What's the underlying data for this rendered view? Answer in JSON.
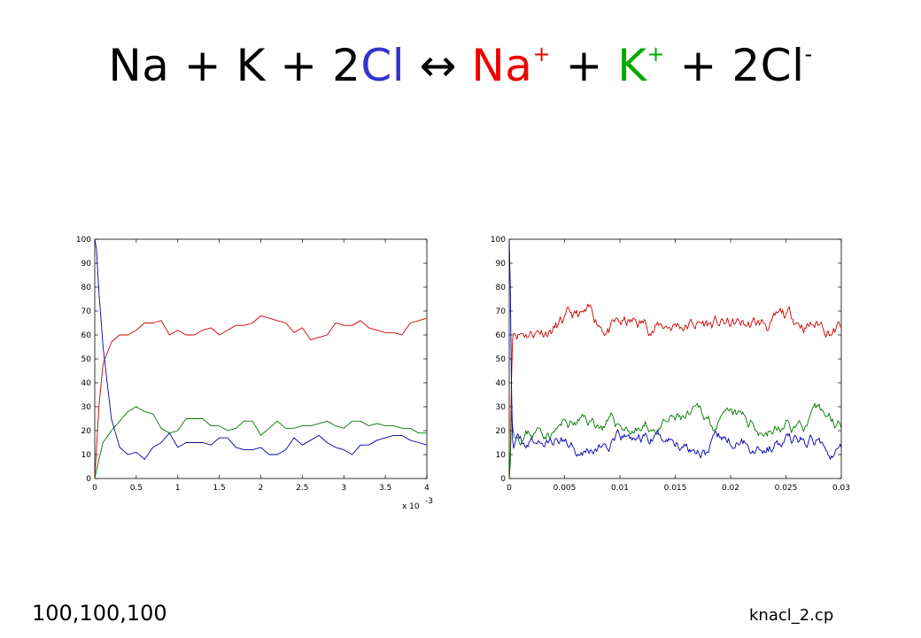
{
  "title": {
    "na": "Na",
    "k": "K",
    "cl2": "2",
    "cl": "Cl",
    "arrow": "↔",
    "na_ion": "Na",
    "k_ion": "K",
    "cl2_ion": "2Cl",
    "plus": "+",
    "minus": "-",
    "sep": " + "
  },
  "colors": {
    "cl": "#3333cc",
    "na": "#ee0000",
    "k": "#00aa00"
  },
  "footer": {
    "left": "100,100,100",
    "right": "knacl_2.cp"
  },
  "chart_data": [
    {
      "type": "line",
      "xlim": [
        0,
        4
      ],
      "ylim": [
        0,
        100
      ],
      "xticks": [
        "0",
        "0.5",
        "1",
        "1.5",
        "2",
        "2.5",
        "3",
        "3.5",
        "4"
      ],
      "yticks": [
        "0",
        "10",
        "20",
        "30",
        "40",
        "50",
        "60",
        "70",
        "80",
        "90",
        "100"
      ],
      "x_exponent_label": "x 10",
      "x_exponent": "-3",
      "grid": false,
      "series": [
        {
          "color": "#cc0000",
          "x": [
            0,
            0.05,
            0.1,
            0.2,
            0.3,
            0.4,
            0.5,
            0.6,
            0.7,
            0.8,
            0.9,
            1.0,
            1.1,
            1.2,
            1.3,
            1.4,
            1.5,
            1.6,
            1.7,
            1.8,
            1.9,
            2.0,
            2.1,
            2.2,
            2.3,
            2.4,
            2.5,
            2.6,
            2.7,
            2.8,
            2.9,
            3.0,
            3.1,
            3.2,
            3.3,
            3.4,
            3.5,
            3.6,
            3.7,
            3.8,
            3.9,
            4.0
          ],
          "y": [
            0,
            30,
            48,
            57,
            60,
            60,
            62,
            65,
            65,
            66,
            60,
            62,
            60,
            60,
            62,
            63,
            60,
            62,
            64,
            64,
            65,
            68,
            67,
            66,
            65,
            61,
            63,
            58,
            59,
            60,
            65,
            64,
            64,
            66,
            63,
            62,
            61,
            61,
            60,
            65,
            66,
            67
          ]
        },
        {
          "color": "#007700",
          "x": [
            0,
            0.05,
            0.1,
            0.2,
            0.3,
            0.4,
            0.5,
            0.6,
            0.7,
            0.8,
            0.9,
            1.0,
            1.1,
            1.2,
            1.3,
            1.4,
            1.5,
            1.6,
            1.7,
            1.8,
            1.9,
            2.0,
            2.1,
            2.2,
            2.3,
            2.4,
            2.5,
            2.6,
            2.7,
            2.8,
            2.9,
            3.0,
            3.1,
            3.2,
            3.3,
            3.4,
            3.5,
            3.6,
            3.7,
            3.8,
            3.9,
            4.0
          ],
          "y": [
            0,
            8,
            15,
            20,
            24,
            28,
            30,
            28,
            27,
            21,
            19,
            20,
            25,
            25,
            25,
            22,
            22,
            20,
            21,
            24,
            24,
            18,
            21,
            24,
            21,
            21,
            22,
            22,
            23,
            24,
            22,
            21,
            24,
            24,
            22,
            23,
            22,
            22,
            21,
            21,
            19,
            19
          ]
        },
        {
          "color": "#0000aa",
          "x": [
            0,
            0.02,
            0.05,
            0.1,
            0.2,
            0.3,
            0.4,
            0.5,
            0.6,
            0.7,
            0.8,
            0.9,
            1.0,
            1.1,
            1.2,
            1.3,
            1.4,
            1.5,
            1.6,
            1.7,
            1.8,
            1.9,
            2.0,
            2.1,
            2.2,
            2.3,
            2.4,
            2.5,
            2.6,
            2.7,
            2.8,
            2.9,
            3.0,
            3.1,
            3.2,
            3.3,
            3.4,
            3.5,
            3.6,
            3.7,
            3.8,
            3.9,
            4.0
          ],
          "y": [
            100,
            96,
            78,
            55,
            25,
            13,
            10,
            11,
            8,
            13,
            15,
            19,
            13,
            15,
            15,
            15,
            14,
            17,
            17,
            13,
            12,
            12,
            13,
            10,
            10,
            12,
            17,
            14,
            16,
            18,
            15,
            13,
            12,
            10,
            14,
            14,
            16,
            17,
            18,
            18,
            16,
            15,
            14
          ]
        }
      ]
    },
    {
      "type": "line",
      "xlim": [
        0,
        0.03
      ],
      "ylim": [
        0,
        100
      ],
      "xticks": [
        "0",
        "0.005",
        "0.01",
        "0.015",
        "0.02",
        "0.025",
        "0.03"
      ],
      "yticks": [
        "0",
        "10",
        "20",
        "30",
        "40",
        "50",
        "60",
        "70",
        "80",
        "90",
        "100"
      ],
      "grid": false,
      "series": [
        {
          "color": "#cc0000",
          "start": 0,
          "mean": 64,
          "amp": 3,
          "noise": 2.2,
          "seed": 11,
          "spike": [
            0,
            10,
            40,
            58
          ]
        },
        {
          "color": "#007700",
          "start": 0,
          "mean": 22,
          "amp": 3,
          "noise": 2.0,
          "seed": 23,
          "spike": [
            0,
            6,
            28,
            22
          ]
        },
        {
          "color": "#0000aa",
          "start": 100,
          "mean": 15,
          "amp": 2,
          "noise": 2.0,
          "seed": 37,
          "spike": [
            100,
            80,
            40,
            16
          ]
        }
      ],
      "samples": 300
    }
  ]
}
